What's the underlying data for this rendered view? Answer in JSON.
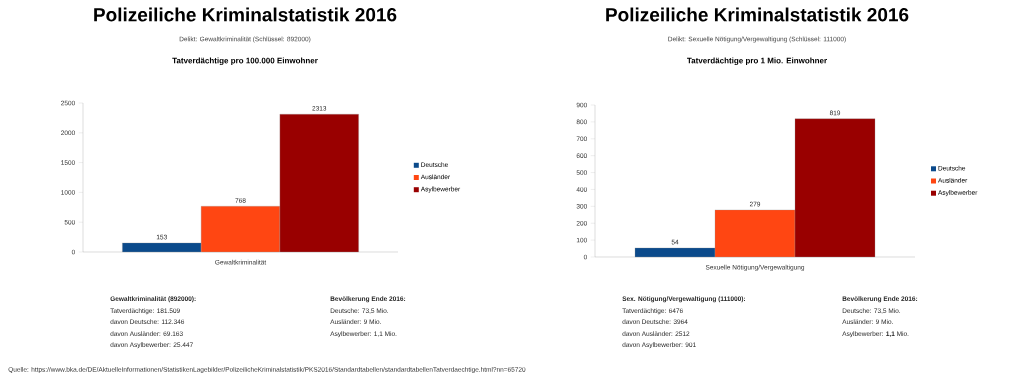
{
  "chart_data": [
    {
      "type": "bar",
      "title": "Polizeiliche Kriminalstatistik 2016",
      "subtitle": "Delikt: Gewaltkriminalität (Schlüssel: 892000)",
      "categories": [
        "Gewaltkriminalität"
      ],
      "series": [
        {
          "name": "Deutsche",
          "color": "#0b4a8b",
          "values": [
            153
          ]
        },
        {
          "name": "Ausländer",
          "color": "#ff4612",
          "values": [
            768
          ]
        },
        {
          "name": "Asylbewerber",
          "color": "#990000",
          "values": [
            2313
          ]
        }
      ],
      "ylim": [
        0,
        2500
      ],
      "yticks": [
        0,
        500,
        1000,
        1500,
        2000,
        2500
      ],
      "grid": false,
      "legend": "right",
      "data_labels": true,
      "annotations": [
        "Tatverdächtige pro 100.000 Einwohner",
        "Gewaltkriminalität (892000):",
        "Tatverdächtige: 181.509",
        "davon Deutsche: 112.346",
        "davon Ausländer: 69.163",
        "davon Asylbewerber: 25.447",
        "Bevölkerung Ende 2016:",
        "Deutsche: 73,5 Mio.",
        "Ausländer: 9 Mio.",
        "Asylbewerber: 1,1 Mio.",
        "Quelle: https://www.bka.de/DE/AktuelleInformationen/StatistikenLagebilder/PolizeilicheKriminalstatistik/PKS2016/Standardtabellen/standardtabellenTatverdaechtige.html?nn=65720"
      ]
    },
    {
      "type": "bar",
      "title": "Polizeiliche Kriminalstatistik 2016",
      "subtitle": "Delikt: Sexuelle Nötigung/Vergewaltigung (Schlüssel: 111000)",
      "categories": [
        "Sexuelle Nötigung/Vergewaltigung"
      ],
      "series": [
        {
          "name": "Deutsche",
          "color": "#0b4a8b",
          "values": [
            54
          ]
        },
        {
          "name": "Ausländer",
          "color": "#ff4612",
          "values": [
            279
          ]
        },
        {
          "name": "Asylbewerber",
          "color": "#990000",
          "values": [
            819
          ]
        }
      ],
      "ylim": [
        0,
        900
      ],
      "yticks": [
        0,
        100,
        200,
        300,
        400,
        500,
        600,
        700,
        800,
        900
      ],
      "grid": false,
      "legend": "right",
      "data_labels": true,
      "annotations": [
        "Tatverdächtige pro 1 Mio. Einwohner",
        "Sex. Nötigung/Vergewaltigung (111000):",
        "Tatverdächtige: 6476",
        "davon Deutsche: 3964",
        "davon Ausländer: 2512",
        "davon Asylbewerber: 901",
        "Bevölkerung Ende 2016:",
        "Deutsche: 73,5 Mio.",
        "Ausländer: 9 Mio.",
        "Asylbewerber: **1,1** Mio."
      ]
    }
  ]
}
